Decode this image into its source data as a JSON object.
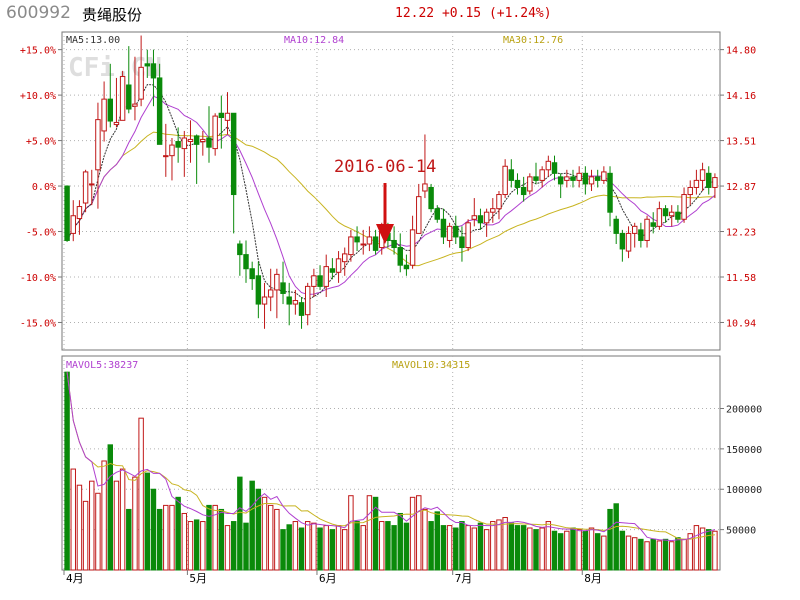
{
  "header": {
    "code": "600992",
    "name": "贵绳股份",
    "price": "12.22",
    "change": "+0.15",
    "change_pct": "(+1.24%)"
  },
  "watermark": "CFi.CN",
  "annotation": {
    "label": "2016-06-14"
  },
  "colors": {
    "up": "#c01818",
    "down": "#0a8a0a",
    "ma5": "#333333",
    "ma10": "#b040d0",
    "ma30": "#c8b420",
    "axis_text": "#cc0000",
    "grid": "#b0b0b0"
  },
  "chart_data": [
    {
      "type": "candlestick",
      "ma_labels": {
        "ma5": "MA5:13.00",
        "ma10": "MA10:12.84",
        "ma30": "MA30:12.76"
      },
      "pct_ticks": [
        "+15.0%",
        "+10.0%",
        "+5.0%",
        "0.0%",
        "-5.0%",
        "-10.0%",
        "-15.0%"
      ],
      "price_ticks": [
        "14.80",
        "14.16",
        "13.51",
        "12.87",
        "12.23",
        "11.58",
        "10.94"
      ],
      "x_labels": [
        "4月",
        "5月",
        "6月",
        "7月",
        "8月"
      ],
      "ohlc": [
        [
          12.87,
          12.88,
          12.08,
          12.1
        ],
        [
          12.2,
          12.67,
          12.09,
          12.45
        ],
        [
          12.41,
          12.67,
          12.18,
          12.58
        ],
        [
          12.63,
          13.1,
          12.5,
          13.07
        ],
        [
          12.9,
          13.1,
          12.6,
          12.9
        ],
        [
          13.1,
          14.05,
          12.55,
          13.81
        ],
        [
          13.65,
          14.35,
          13.5,
          14.1
        ],
        [
          14.1,
          14.6,
          13.7,
          13.79
        ],
        [
          13.74,
          14.4,
          13.7,
          13.77
        ],
        [
          13.8,
          14.5,
          13.8,
          14.42
        ],
        [
          14.3,
          14.85,
          13.9,
          13.96
        ],
        [
          14.0,
          14.7,
          13.8,
          14.03
        ],
        [
          14.1,
          15.0,
          14.0,
          14.55
        ],
        [
          14.6,
          14.8,
          14.4,
          14.57
        ],
        [
          14.6,
          14.8,
          14.0,
          14.4
        ],
        [
          14.4,
          14.6,
          13.5,
          13.46
        ],
        [
          13.3,
          13.75,
          13.0,
          13.3
        ],
        [
          13.3,
          13.55,
          12.95,
          13.45
        ],
        [
          13.5,
          13.7,
          13.2,
          13.42
        ],
        [
          13.4,
          13.65,
          13.0,
          13.55
        ],
        [
          13.5,
          13.8,
          13.2,
          13.53
        ],
        [
          13.58,
          13.6,
          12.9,
          13.46
        ],
        [
          13.5,
          13.65,
          13.3,
          13.53
        ],
        [
          13.55,
          14.0,
          13.2,
          13.42
        ],
        [
          13.4,
          13.9,
          13.3,
          13.86
        ],
        [
          13.9,
          14.15,
          13.4,
          13.84
        ],
        [
          13.8,
          14.2,
          13.6,
          13.9
        ],
        [
          13.9,
          13.9,
          12.2,
          12.75
        ],
        [
          12.05,
          12.1,
          11.6,
          11.9
        ],
        [
          11.9,
          12.1,
          11.5,
          11.7
        ],
        [
          11.7,
          11.8,
          11.4,
          11.56
        ],
        [
          11.6,
          11.8,
          11.0,
          11.2
        ],
        [
          11.2,
          11.5,
          10.85,
          11.3
        ],
        [
          11.3,
          11.7,
          11.1,
          11.4
        ],
        [
          11.4,
          11.7,
          11.0,
          11.62
        ],
        [
          11.5,
          11.8,
          11.2,
          11.35
        ],
        [
          11.3,
          11.5,
          10.9,
          11.2
        ],
        [
          11.2,
          11.4,
          11.05,
          11.25
        ],
        [
          11.22,
          11.3,
          10.85,
          11.04
        ],
        [
          11.05,
          11.5,
          10.9,
          11.45
        ],
        [
          11.45,
          11.7,
          11.3,
          11.6
        ],
        [
          11.6,
          11.75,
          11.4,
          11.45
        ],
        [
          11.45,
          11.9,
          11.3,
          11.73
        ],
        [
          11.7,
          11.85,
          11.55,
          11.65
        ],
        [
          11.65,
          11.95,
          11.5,
          11.84
        ],
        [
          11.8,
          12.0,
          11.6,
          11.91
        ],
        [
          11.9,
          12.25,
          11.8,
          12.15
        ],
        [
          12.15,
          12.3,
          11.95,
          12.08
        ],
        [
          12.05,
          12.25,
          11.9,
          12.05
        ],
        [
          12.05,
          12.3,
          11.95,
          12.15
        ],
        [
          12.15,
          12.25,
          11.9,
          11.96
        ],
        [
          12.0,
          12.35,
          11.9,
          12.25
        ],
        [
          12.2,
          12.35,
          12.0,
          12.1
        ],
        [
          12.1,
          12.3,
          11.9,
          12.0
        ],
        [
          12.0,
          12.2,
          11.65,
          11.75
        ],
        [
          11.75,
          11.9,
          11.6,
          11.7
        ],
        [
          11.75,
          12.45,
          11.7,
          12.25
        ],
        [
          12.2,
          12.9,
          12.2,
          12.72
        ],
        [
          12.8,
          13.6,
          12.7,
          12.9
        ],
        [
          12.85,
          12.9,
          12.5,
          12.55
        ],
        [
          12.55,
          12.6,
          12.35,
          12.4
        ],
        [
          12.4,
          12.55,
          12.05,
          12.15
        ],
        [
          12.1,
          12.35,
          12.0,
          12.3
        ],
        [
          12.3,
          12.45,
          12.05,
          12.15
        ],
        [
          12.15,
          12.3,
          11.8,
          12.0
        ],
        [
          12.0,
          12.4,
          11.95,
          12.35
        ],
        [
          12.4,
          12.7,
          12.3,
          12.45
        ],
        [
          12.45,
          12.55,
          12.25,
          12.35
        ],
        [
          12.35,
          12.55,
          12.15,
          12.5
        ],
        [
          12.5,
          12.7,
          12.35,
          12.55
        ],
        [
          12.55,
          12.8,
          12.4,
          12.75
        ],
        [
          12.75,
          13.25,
          12.7,
          13.15
        ],
        [
          13.1,
          13.25,
          12.85,
          12.95
        ],
        [
          12.95,
          13.05,
          12.75,
          12.85
        ],
        [
          12.85,
          13.0,
          12.65,
          12.75
        ],
        [
          12.8,
          13.05,
          12.75,
          13.0
        ],
        [
          13.0,
          13.2,
          12.9,
          12.95
        ],
        [
          12.95,
          13.15,
          12.85,
          13.1
        ],
        [
          13.1,
          13.3,
          13.0,
          13.22
        ],
        [
          13.2,
          13.3,
          12.95,
          13.05
        ],
        [
          13.0,
          13.05,
          12.7,
          12.9
        ],
        [
          12.95,
          13.1,
          12.85,
          13.0
        ],
        [
          13.0,
          13.1,
          12.85,
          12.95
        ],
        [
          12.95,
          13.15,
          12.85,
          13.05
        ],
        [
          13.05,
          13.15,
          12.75,
          12.9
        ],
        [
          12.9,
          13.1,
          12.8,
          13.0
        ],
        [
          13.0,
          13.1,
          12.85,
          12.95
        ],
        [
          12.95,
          13.15,
          12.9,
          13.07
        ],
        [
          13.05,
          13.15,
          12.3,
          12.5
        ],
        [
          12.4,
          12.45,
          12.05,
          12.2
        ],
        [
          12.2,
          12.25,
          11.8,
          11.98
        ],
        [
          11.95,
          12.3,
          11.85,
          12.2
        ],
        [
          12.2,
          12.35,
          12.0,
          12.3
        ],
        [
          12.25,
          12.35,
          12.0,
          12.1
        ],
        [
          12.1,
          12.45,
          12.0,
          12.4
        ],
        [
          12.35,
          12.5,
          12.2,
          12.3
        ],
        [
          12.3,
          12.65,
          12.25,
          12.55
        ],
        [
          12.55,
          12.6,
          12.35,
          12.45
        ],
        [
          12.45,
          12.6,
          12.3,
          12.5
        ],
        [
          12.5,
          12.6,
          12.35,
          12.4
        ],
        [
          12.4,
          12.85,
          12.35,
          12.75
        ],
        [
          12.75,
          12.95,
          12.6,
          12.85
        ],
        [
          12.85,
          13.1,
          12.75,
          12.95
        ],
        [
          12.95,
          13.2,
          12.8,
          13.1
        ],
        [
          13.05,
          13.15,
          12.75,
          12.85
        ],
        [
          12.85,
          13.05,
          12.7,
          12.99
        ]
      ]
    },
    {
      "type": "bar",
      "ma_labels": {
        "mavol5": "MAVOL5:38237",
        "mavol10": "MAVOL10:34315"
      },
      "y_ticks": [
        "200000",
        "150000",
        "100000",
        "50000"
      ],
      "volume": [
        245000,
        125000,
        105000,
        85000,
        110000,
        95000,
        135000,
        155000,
        110000,
        125000,
        75000,
        115000,
        188000,
        120000,
        100000,
        75000,
        80000,
        80000,
        90000,
        70000,
        60000,
        62000,
        60000,
        80000,
        80000,
        75000,
        55000,
        60000,
        115000,
        58000,
        110000,
        100000,
        90000,
        80000,
        75000,
        50000,
        56000,
        60000,
        52000,
        60000,
        58000,
        52000,
        55000,
        50000,
        55000,
        50000,
        92000,
        60000,
        55000,
        92000,
        90000,
        60000,
        60000,
        55000,
        70000,
        58000,
        90000,
        92000,
        75000,
        60000,
        72000,
        55000,
        55000,
        52000,
        60000,
        55000,
        52000,
        58000,
        50000,
        60000,
        62000,
        65000,
        58000,
        55000,
        55000,
        52000,
        50000,
        52000,
        60000,
        48000,
        45000,
        48000,
        52000,
        50000,
        48000,
        52000,
        45000,
        42000,
        75000,
        82000,
        48000,
        42000,
        40000,
        38000,
        35000,
        38000,
        36000,
        38000,
        35000,
        40000,
        38000,
        45000,
        55000,
        52000,
        50000,
        48000
      ]
    }
  ]
}
